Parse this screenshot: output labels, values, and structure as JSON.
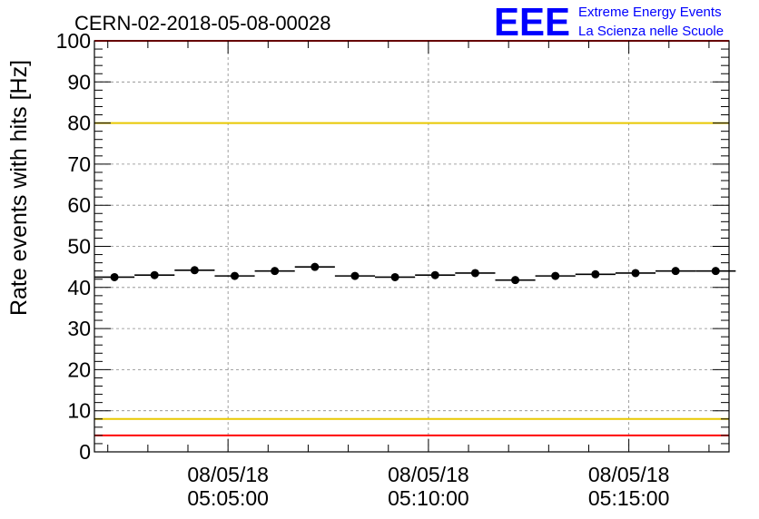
{
  "title": "CERN-02-2018-05-08-00028",
  "logo": {
    "mark": "EEE",
    "line1": "Extreme Energy Events",
    "line2": "La Scienza nelle Scuole",
    "color": "#0000ff"
  },
  "chart_data": {
    "type": "scatter",
    "title": "CERN-02-2018-05-08-00028",
    "ylabel": "Rate events with hits [Hz]",
    "xlabel": "",
    "ylim": [
      0,
      100
    ],
    "yticks": [
      0,
      10,
      20,
      30,
      40,
      50,
      60,
      70,
      80,
      90,
      100
    ],
    "xlim": [
      "2018-05-08 05:01:40",
      "2018-05-08 05:17:30"
    ],
    "xticks": [
      {
        "x": "2018-05-08 05:05:00",
        "date": "08/05/18",
        "time": "05:05:00"
      },
      {
        "x": "2018-05-08 05:10:00",
        "date": "08/05/18",
        "time": "05:10:00"
      },
      {
        "x": "2018-05-08 05:15:00",
        "date": "08/05/18",
        "time": "05:15:00"
      }
    ],
    "grid": true,
    "bin_width_s": 60,
    "series": [
      {
        "x": [
          "05:02:10",
          "05:03:10",
          "05:04:10",
          "05:05:10",
          "05:06:10",
          "05:07:10",
          "05:08:10",
          "05:09:10",
          "05:10:10",
          "05:11:10",
          "05:12:10",
          "05:13:10",
          "05:14:10",
          "05:15:10",
          "05:16:10",
          "05:17:10"
        ],
        "values": [
          42.5,
          43.0,
          44.2,
          42.8,
          44.0,
          45.0,
          42.8,
          42.5,
          43.0,
          43.5,
          41.8,
          42.8,
          43.2,
          43.5,
          44.0,
          44.0
        ]
      }
    ],
    "reference_lines": [
      {
        "y": 100,
        "color": "#ff0000"
      },
      {
        "y": 80,
        "color": "#e8c800"
      },
      {
        "y": 8,
        "color": "#e8c800"
      },
      {
        "y": 4,
        "color": "#ff0000"
      }
    ]
  }
}
